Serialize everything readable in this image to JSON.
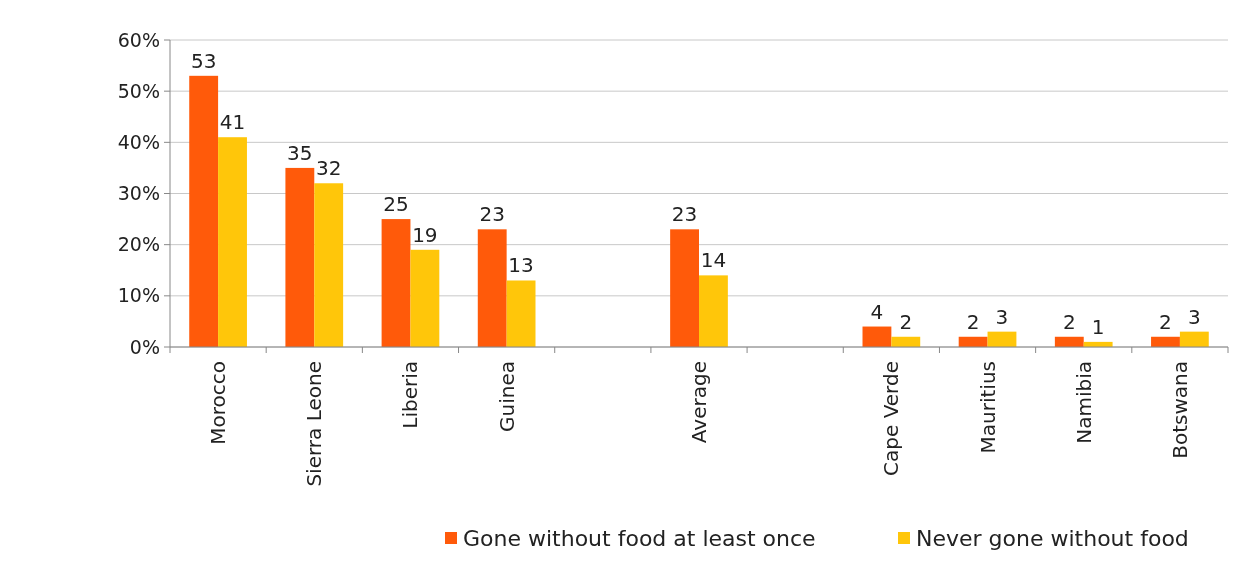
{
  "chart_data": {
    "type": "bar",
    "categories": [
      "Morocco",
      "Sierra Leone",
      "Liberia",
      "Guinea",
      null,
      "Average",
      null,
      "Cape Verde",
      "Mauritius",
      "Namibia",
      "Botswana"
    ],
    "series": [
      {
        "name": "Gone without food at least once",
        "color": "#ff5a0a",
        "values": [
          53,
          35,
          25,
          23,
          null,
          23,
          null,
          4,
          2,
          2,
          2
        ]
      },
      {
        "name": "Never gone without food",
        "color": "#ffc60a",
        "values": [
          41,
          32,
          19,
          13,
          null,
          14,
          null,
          2,
          3,
          1,
          3
        ]
      }
    ],
    "ylim": [
      0,
      60
    ],
    "yticks": [
      {
        "value": 0,
        "label": "0%"
      },
      {
        "value": 10,
        "label": "10%"
      },
      {
        "value": 20,
        "label": "20%"
      },
      {
        "value": 30,
        "label": "30%"
      },
      {
        "value": 40,
        "label": "40%"
      },
      {
        "value": 50,
        "label": "50%"
      },
      {
        "value": 60,
        "label": "60%"
      }
    ],
    "grid": "y",
    "data_labels": true,
    "legend": "bottom"
  }
}
